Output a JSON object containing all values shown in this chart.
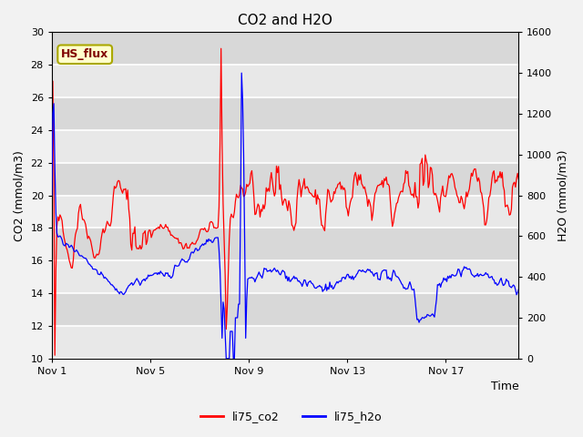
{
  "title": "CO2 and H2O",
  "xlabel": "Time",
  "ylabel_left": "CO2 (mmol/m3)",
  "ylabel_right": "H2O (mmol/m3)",
  "ylim_left": [
    10,
    30
  ],
  "ylim_right": [
    0,
    1600
  ],
  "yticks_left": [
    10,
    12,
    14,
    16,
    18,
    20,
    22,
    24,
    26,
    28,
    30
  ],
  "yticks_right": [
    0,
    200,
    400,
    600,
    800,
    1000,
    1200,
    1400,
    1600
  ],
  "xtick_labels": [
    "Nov 1",
    "Nov 5",
    "Nov 9",
    "Nov 13",
    "Nov 17"
  ],
  "xtick_positions": [
    0,
    96,
    192,
    288,
    384
  ],
  "legend_labels": [
    "li75_co2",
    "li75_h2o"
  ],
  "co2_color": "red",
  "h2o_color": "blue",
  "background_color": "#f2f2f2",
  "annotation_text": "HS_flux",
  "annotation_bg": "#ffffcc",
  "annotation_border": "#aaa800",
  "annotation_text_color": "#800000",
  "band_colors": [
    "#e8e8e8",
    "#d8d8d8"
  ],
  "grid_color": "#ffffff",
  "total_points": 456
}
